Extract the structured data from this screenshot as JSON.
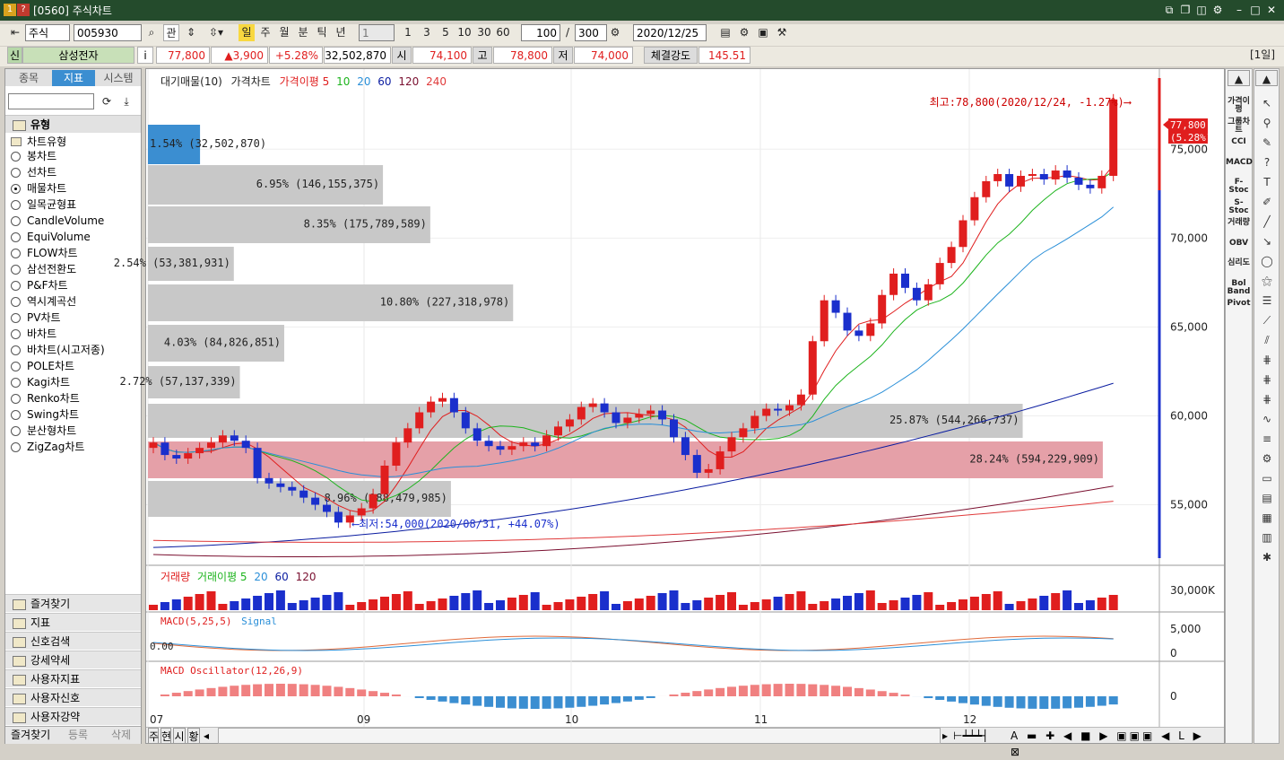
{
  "window": {
    "title": "[0560] 주식차트",
    "badge1": "1",
    "badge2": "?"
  },
  "toolbar": {
    "market": "주식",
    "code": "005930",
    "btn_gwan": "관",
    "periods": [
      "일",
      "주",
      "월",
      "분",
      "틱",
      "년"
    ],
    "period_num": "1",
    "quick": [
      "1",
      "3",
      "5",
      "10",
      "30",
      "60"
    ],
    "count": "100",
    "total": "300",
    "slash": "/",
    "date": "2020/12/25"
  },
  "quote": {
    "market_tag": "신",
    "name": "삼성전자",
    "info": "i",
    "price": "77,800",
    "change": "▲3,900",
    "rate": "+5.28%",
    "volume": "32,502,870",
    "open_label": "시",
    "open": "74,100",
    "high_label": "고",
    "high": "78,800",
    "low_label": "저",
    "low": "74,000",
    "strength_label": "체결강도",
    "strength": "145.51",
    "period_tag": "[1일]"
  },
  "left": {
    "tabs": [
      "종목",
      "지표",
      "시스템"
    ],
    "type_title": "유형",
    "chart_type": "차트유형",
    "options": [
      "봉차트",
      "선차트",
      "매물차트",
      "일목균형표",
      "CandleVolume",
      "EquiVolume",
      "FLOW차트",
      "삼선전환도",
      "P&F차트",
      "역시계곡선",
      "PV차트",
      "바차트",
      "바차트(시고저종)",
      "POLE차트",
      "Kagi차트",
      "Renko차트",
      "Swing차트",
      "분산형차트",
      "ZigZag차트"
    ],
    "selected": 2,
    "sections": [
      "즐겨찾기",
      "지표",
      "신호검색",
      "강세약세",
      "사용자지표",
      "사용자신호",
      "사용자강약"
    ],
    "bottom": [
      "즐겨찾기",
      "등록",
      "삭제"
    ]
  },
  "chart": {
    "legend_main": [
      "대기매물(10)",
      "가격차트",
      "가격이평 5",
      "10",
      "20",
      "60",
      "120",
      "240"
    ],
    "legend_vol": [
      "거래량",
      "거래이평 5",
      "20",
      "60",
      "120"
    ],
    "legend_macd": [
      "MACD(5,25,5)",
      "Signal"
    ],
    "legend_osc": [
      "MACD Oscillator(12,26,9)"
    ],
    "max_label": "최고:78,800(2020/12/24, -1.27%)⟶",
    "min_label": "⟵최저:54,000(2020/08/31, +44.07%)",
    "cur_price": "77,800",
    "cur_rate": "(5.28%)",
    "price_axis": [
      "75,000",
      "70,000",
      "65,000",
      "60,000",
      "55,000"
    ],
    "vol_axis": "30,000K",
    "macd_axis": [
      "5,000",
      "0"
    ],
    "macd_zero": "0.00",
    "osc_axis": "0",
    "x_axis": [
      "07",
      "09",
      "10",
      "11",
      "12"
    ],
    "bottom_tabs": [
      "주",
      "현",
      "시",
      "황"
    ],
    "colors": {
      "up": "#e01e1e",
      "down": "#1a2fcc",
      "vp": "#c8c8c8",
      "vp_hi": "#e5a0a8",
      "vp_cur": "#3b8ed1"
    }
  },
  "chart_data": {
    "type": "volume-profile",
    "title": "대기매물(10)",
    "bars": [
      {
        "label": "1.54% (32,502,870)",
        "pct": 1.54
      },
      {
        "label": "6.95% (146,155,375)",
        "pct": 6.95
      },
      {
        "label": "8.35% (175,789,589)",
        "pct": 8.35
      },
      {
        "label": "2.54% (53,381,931)",
        "pct": 2.54
      },
      {
        "label": "10.80% (227,318,978)",
        "pct": 10.8
      },
      {
        "label": "4.03% (84,826,851)",
        "pct": 4.03
      },
      {
        "label": "2.72% (57,137,339)",
        "pct": 2.72
      },
      {
        "label": "25.87% (544,266,737)",
        "pct": 25.87
      },
      {
        "label": "28.24% (594,229,909)",
        "pct": 28.24
      },
      {
        "label": "8.96% (188,479,985)",
        "pct": 8.96
      }
    ],
    "ylim": [
      52000,
      79000
    ]
  },
  "right": {
    "labels": [
      "가격이평",
      "그룹차트",
      "CCI",
      "MACD",
      "F-Stoc",
      "S-Stoc",
      "거래량",
      "OBV",
      "심리도",
      "Bol Band",
      "Pivot"
    ]
  }
}
